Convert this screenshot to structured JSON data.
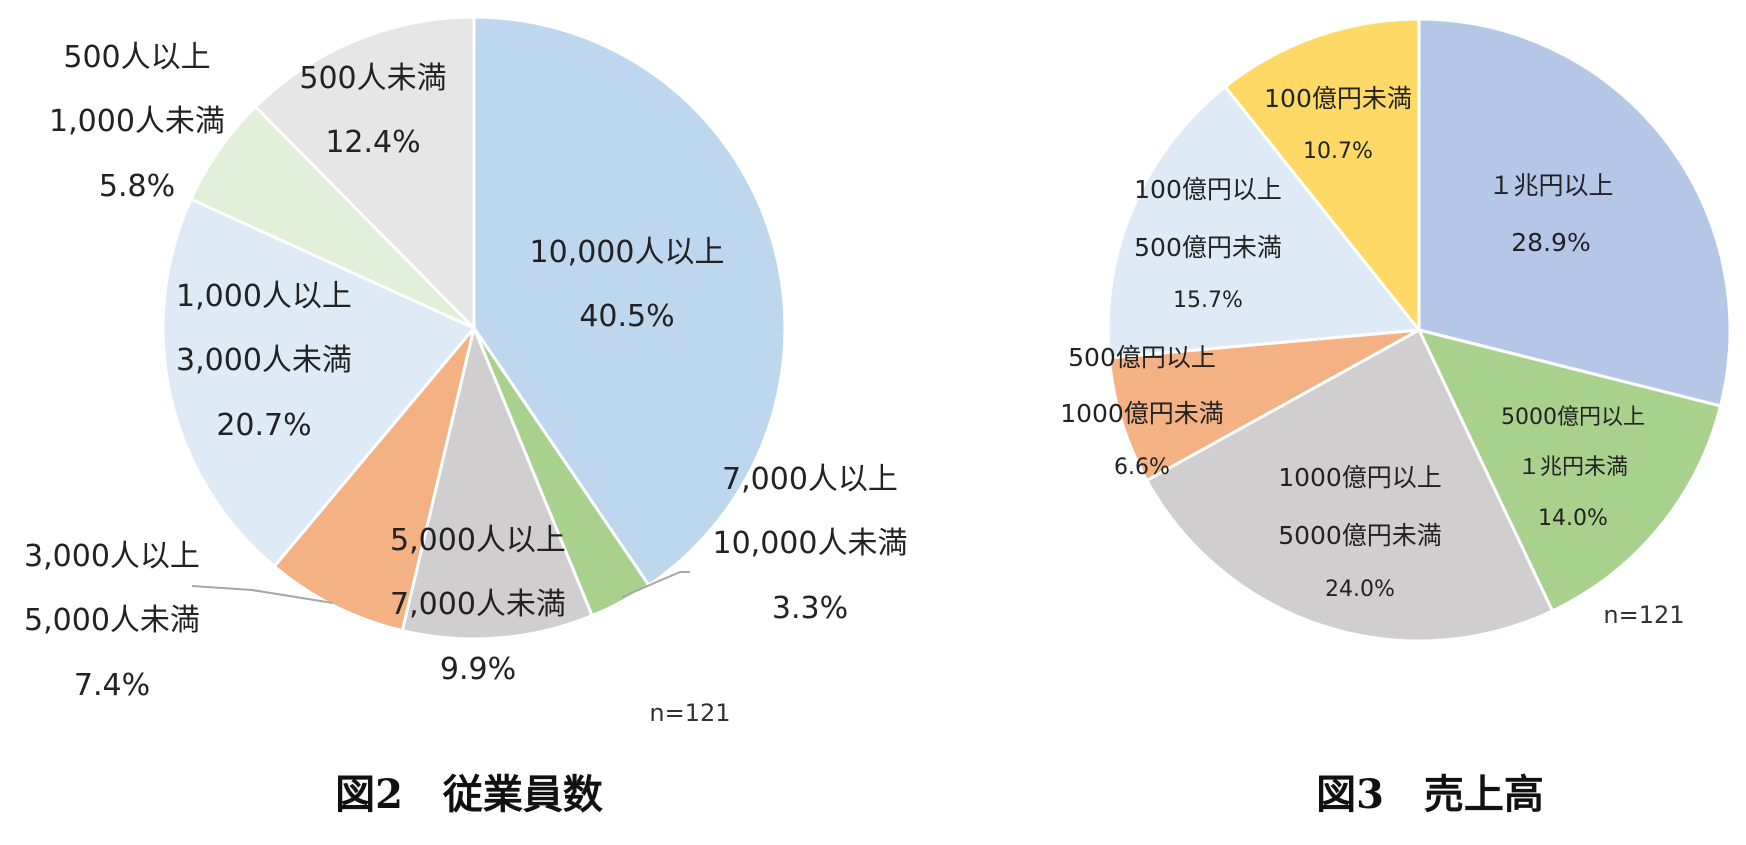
{
  "chart_data": [
    {
      "type": "pie",
      "title": "図2　従業員数",
      "note": "n=121",
      "colors": [
        "#bdd7ee",
        "#a9d18e",
        "#d0cece",
        "#f4b183",
        "#deebf7",
        "#e2f0d9",
        "#e7e6e6"
      ],
      "slices": [
        {
          "lines": [
            "10,000人以上"
          ],
          "value": 40.5,
          "value_label": "40.5%"
        },
        {
          "lines": [
            "7,000人以上",
            "10,000人未満"
          ],
          "value": 3.3,
          "value_label": "3.3%"
        },
        {
          "lines": [
            "5,000人以上",
            "7,000人未満"
          ],
          "value": 9.9,
          "value_label": "9.9%"
        },
        {
          "lines": [
            "3,000人以上",
            "5,000人未満"
          ],
          "value": 7.4,
          "value_label": "7.4%"
        },
        {
          "lines": [
            "1,000人以上",
            "3,000人未満"
          ],
          "value": 20.7,
          "value_label": "20.7%"
        },
        {
          "lines": [
            "500人以上",
            "1,000人未満"
          ],
          "value": 5.8,
          "value_label": "5.8%"
        },
        {
          "lines": [
            "500人未満"
          ],
          "value": 12.4,
          "value_label": "12.4%"
        }
      ]
    },
    {
      "type": "pie",
      "title": "図3　売上高",
      "note": "n=121",
      "colors": [
        "#b4c7e7",
        "#a9d18e",
        "#d0cece",
        "#f4b183",
        "#deebf7",
        "#ffd966"
      ],
      "slices": [
        {
          "lines": [
            "１兆円以上"
          ],
          "value": 28.9,
          "value_label": "28.9%"
        },
        {
          "lines": [
            "5000億円以上",
            "１兆円未満"
          ],
          "value": 14.0,
          "value_label": "14.0%"
        },
        {
          "lines": [
            "1000億円以上",
            "5000億円未満"
          ],
          "value": 24.0,
          "value_label": "24.0%"
        },
        {
          "lines": [
            "500億円以上",
            "1000億円未満"
          ],
          "value": 6.6,
          "value_label": "6.6%"
        },
        {
          "lines": [
            "100億円以上",
            "500億円未満"
          ],
          "value": 15.7,
          "value_label": "15.7%"
        },
        {
          "lines": [
            "100億円未満"
          ],
          "value": 10.7,
          "value_label": "10.7%"
        }
      ]
    }
  ]
}
